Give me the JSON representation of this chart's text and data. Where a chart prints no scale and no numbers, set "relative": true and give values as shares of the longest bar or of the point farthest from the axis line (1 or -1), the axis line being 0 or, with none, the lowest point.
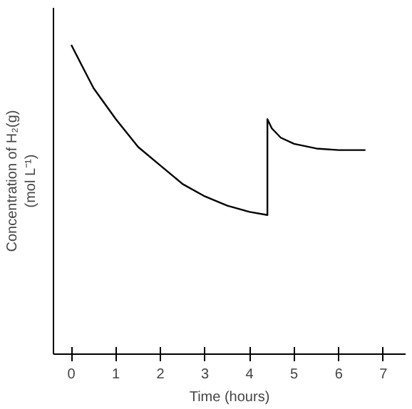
{
  "chart_data": {
    "type": "line",
    "relative": true,
    "xlabel": "Time (hours)",
    "ylabel": "Concentration of H₂(g)\n(mol L⁻¹)",
    "xlim": [
      -0.4,
      7.5
    ],
    "xticks": [
      0,
      1,
      2,
      3,
      4,
      5,
      6,
      7
    ],
    "grid": false,
    "marker": "none",
    "line_style": "solid",
    "series": [
      {
        "color": "#000000",
        "x": [
          0,
          0.25,
          0.5,
          0.75,
          1,
          1.5,
          2,
          2.5,
          3,
          3.5,
          4,
          4.4,
          4.4,
          4.5,
          4.7,
          5,
          5.5,
          6,
          6.6
        ],
        "values": [
          1.0,
          0.93,
          0.86,
          0.81,
          0.76,
          0.67,
          0.61,
          0.55,
          0.51,
          0.48,
          0.46,
          0.45,
          0.76,
          0.73,
          0.7,
          0.68,
          0.665,
          0.66,
          0.66
        ]
      }
    ]
  }
}
